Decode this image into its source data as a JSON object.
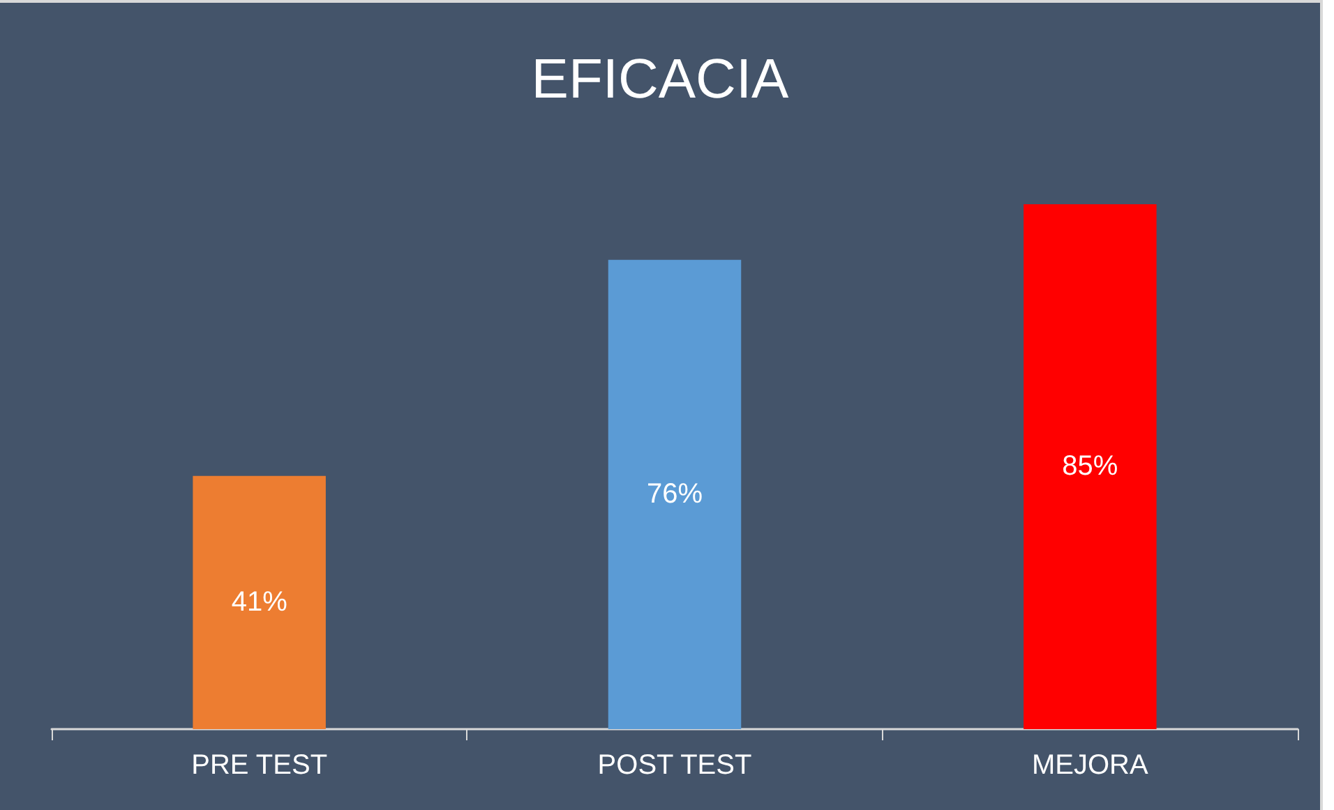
{
  "chart_data": {
    "type": "bar",
    "title": "EFICACIA",
    "categories": [
      "PRE TEST",
      "POST TEST",
      "MEJORA"
    ],
    "values": [
      41,
      76,
      85
    ],
    "colors": [
      "#ed7d31",
      "#5b9bd5",
      "#ff0000"
    ],
    "value_labels": [
      "41%",
      "76%",
      "85%"
    ],
    "tick_labels": "x"
  }
}
